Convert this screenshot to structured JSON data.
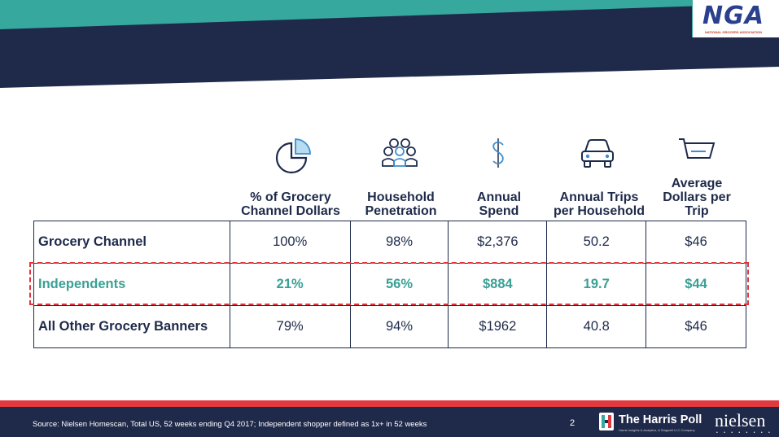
{
  "brand": {
    "logo_text": "NGA",
    "logo_subtext": "NATIONAL GROCERS ASSOCIATION",
    "teal_color": "#36a89d",
    "navy_color": "#1f2a4a",
    "red_color": "#e03a3e"
  },
  "columns": [
    {
      "icon": "pie-chart-icon",
      "header": "% of Grocery Channel Dollars"
    },
    {
      "icon": "people-icon",
      "header": "Household Penetration"
    },
    {
      "icon": "dollar-icon",
      "header": "Annual Spend"
    },
    {
      "icon": "car-icon",
      "header": "Annual Trips per Household"
    },
    {
      "icon": "cart-icon",
      "header": "Average Dollars per Trip"
    }
  ],
  "rows": [
    {
      "label": "Grocery Channel",
      "values": [
        "100%",
        "98%",
        "$2,376",
        "50.2",
        "$46"
      ],
      "highlight": false
    },
    {
      "label": "Independents",
      "values": [
        "21%",
        "56%",
        "$884",
        "19.7",
        "$44"
      ],
      "highlight": true
    },
    {
      "label": "All Other Grocery Banners",
      "values": [
        "79%",
        "94%",
        "$1962",
        "40.8",
        "$46"
      ],
      "highlight": false
    }
  ],
  "footer": {
    "source": "Source:  Nielsen Homescan, Total US, 52 weeks ending Q4 2017; Independent shopper defined as 1x+ in 52 weeks",
    "page_number": "2",
    "harris_name": "The Harris Poll",
    "harris_sub": "Harris Insights & Analytics, A Stagwell LLC Company",
    "nielsen": "nielsen",
    "nielsen_dots": "• • • • • • • •"
  }
}
